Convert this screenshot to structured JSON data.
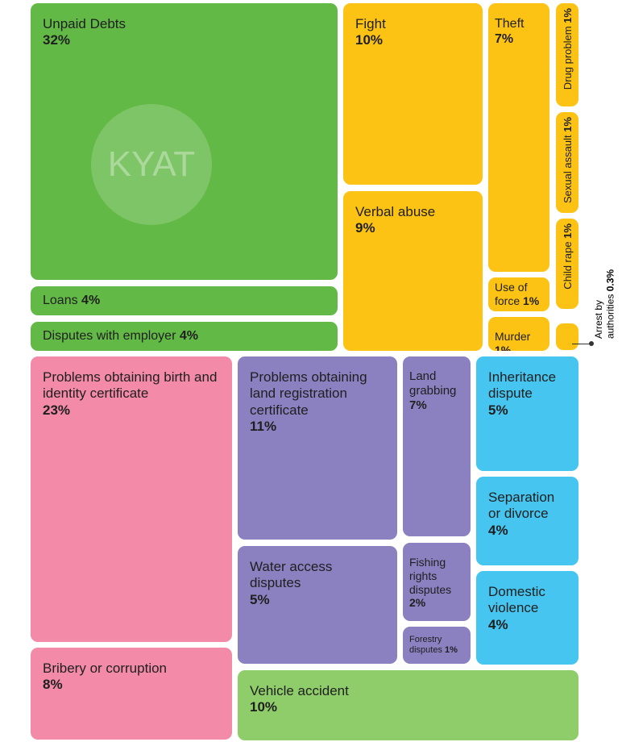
{
  "chart_data": {
    "type": "treemap",
    "watermark": "KYAT",
    "categories": [
      "Unpaid Debts",
      "Loans",
      "Disputes with employer",
      "Fight",
      "Verbal abuse",
      "Theft",
      "Drug problem",
      "Sexual assault",
      "Child rape",
      "Use of force",
      "Murder",
      "Arrest by authorities",
      "Problems obtaining birth and identity certificate",
      "Bribery or corruption",
      "Problems obtaining land registration certificate",
      "Land grabbing",
      "Water access disputes",
      "Fishing rights disputes",
      "Forestry disputes",
      "Inheritance dispute",
      "Separation or divorce",
      "Domestic violence",
      "Vehicle accident"
    ],
    "values": [
      32,
      4,
      4,
      10,
      9,
      7,
      1,
      1,
      1,
      1,
      1,
      0.3,
      23,
      8,
      11,
      7,
      5,
      2,
      1,
      5,
      4,
      4,
      10
    ],
    "value_labels": [
      "32%",
      "4%",
      "4%",
      "10%",
      "9%",
      "7%",
      "1%",
      "1%",
      "1%",
      "1%",
      "1%",
      "0.3%",
      "23%",
      "8%",
      "11%",
      "7%",
      "5%",
      "2%",
      "1%",
      "5%",
      "4%",
      "4%",
      "10%"
    ],
    "colors": [
      "#62b946",
      "#62b946",
      "#62b946",
      "#fcc314",
      "#fcc314",
      "#fcc314",
      "#fcc314",
      "#fcc314",
      "#fcc314",
      "#fcc314",
      "#fcc314",
      "#fcc314",
      "#f28aa8",
      "#f28aa8",
      "#8b80c0",
      "#8b80c0",
      "#8b80c0",
      "#8b80c0",
      "#8b80c0",
      "#45c5ef",
      "#45c5ef",
      "#45c5ef",
      "#8fcc6a"
    ]
  }
}
